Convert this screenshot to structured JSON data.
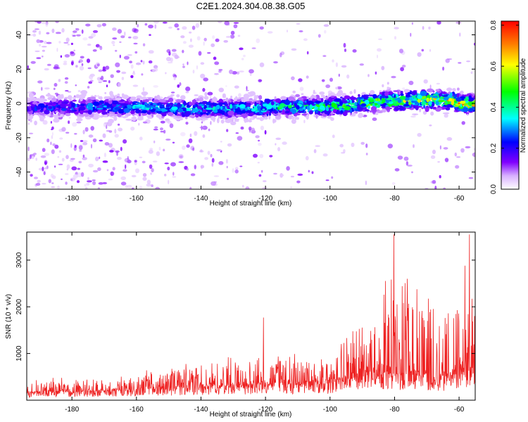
{
  "chart_data": [
    {
      "type": "heatmap",
      "title": "C2E1.2024.304.08.38.G05",
      "xlabel": "Height of straight line (km)",
      "ylabel": "Frequency (Hz)",
      "xlim": [
        -194,
        -55
      ],
      "ylim": [
        -50,
        48
      ],
      "x_ticks": [
        -180,
        -160,
        -140,
        -120,
        -100,
        -80,
        -60
      ],
      "x_tick_labels": [
        "-180",
        "-160",
        "-140",
        "-120",
        "-100",
        "-80",
        "-60"
      ],
      "y_ticks": [
        -40,
        -20,
        0,
        20,
        40
      ],
      "y_tick_labels": [
        "-40",
        "-20",
        "0",
        "20",
        "40"
      ],
      "colorbar": {
        "label": "Normalized spectral amplitude",
        "range": [
          0.0,
          0.82
        ],
        "ticks": [
          0.0,
          0.2,
          0.4,
          0.6,
          0.8
        ],
        "tick_labels": [
          "0.0",
          "0.2",
          "0.4",
          "0.6",
          "0.8"
        ],
        "colors": [
          "#ffffff",
          "#8000ff",
          "#0000ff",
          "#00ffff",
          "#00ff00",
          "#ffff00",
          "#ff8000",
          "#ff0000"
        ]
      },
      "ridge": [
        {
          "x": -194,
          "freq": -3,
          "amp": 0.22
        },
        {
          "x": -185,
          "freq": -2,
          "amp": 0.25
        },
        {
          "x": -175,
          "freq": -2,
          "amp": 0.28
        },
        {
          "x": -165,
          "freq": -2,
          "amp": 0.3
        },
        {
          "x": -155,
          "freq": -2,
          "amp": 0.34
        },
        {
          "x": -145,
          "freq": -3,
          "amp": 0.36
        },
        {
          "x": -135,
          "freq": -3,
          "amp": 0.34
        },
        {
          "x": -125,
          "freq": -3,
          "amp": 0.36
        },
        {
          "x": -115,
          "freq": -2,
          "amp": 0.42
        },
        {
          "x": -105,
          "freq": -2,
          "amp": 0.44
        },
        {
          "x": -95,
          "freq": -1,
          "amp": 0.48
        },
        {
          "x": -85,
          "freq": 1,
          "amp": 0.52
        },
        {
          "x": -75,
          "freq": 2,
          "amp": 0.58
        },
        {
          "x": -65,
          "freq": 2,
          "amp": 0.62
        },
        {
          "x": -55,
          "freq": -1,
          "amp": 0.68
        }
      ]
    },
    {
      "type": "line",
      "title": "",
      "xlabel": "Height of straight line (km)",
      "ylabel": "SNR (10 * v/v)",
      "xlim": [
        -194,
        -55
      ],
      "ylim": [
        0,
        3600
      ],
      "x_ticks": [
        -180,
        -160,
        -140,
        -120,
        -100,
        -80,
        -60
      ],
      "x_tick_labels": [
        "-180",
        "-160",
        "-140",
        "-120",
        "-100",
        "-80",
        "-60"
      ],
      "y_ticks": [
        1000,
        2000,
        3000
      ],
      "y_tick_labels": [
        "1000",
        "2000",
        "3000"
      ],
      "color": "#ee2222",
      "envelope": [
        {
          "x": -194,
          "base": 150,
          "peak": 380
        },
        {
          "x": -180,
          "base": 170,
          "peak": 430
        },
        {
          "x": -170,
          "base": 190,
          "peak": 460
        },
        {
          "x": -160,
          "base": 210,
          "peak": 520
        },
        {
          "x": -150,
          "base": 240,
          "peak": 620
        },
        {
          "x": -140,
          "base": 260,
          "peak": 700
        },
        {
          "x": -130,
          "base": 290,
          "peak": 780
        },
        {
          "x": -120,
          "base": 330,
          "peak": 1000
        },
        {
          "x": -110,
          "base": 330,
          "peak": 850
        },
        {
          "x": -100,
          "base": 340,
          "peak": 800
        },
        {
          "x": -95,
          "base": 420,
          "peak": 1300
        },
        {
          "x": -90,
          "base": 550,
          "peak": 1700
        },
        {
          "x": -85,
          "base": 600,
          "peak": 2000
        },
        {
          "x": -80,
          "base": 560,
          "peak": 2300
        },
        {
          "x": -75,
          "base": 520,
          "peak": 2100
        },
        {
          "x": -70,
          "base": 480,
          "peak": 2000
        },
        {
          "x": -65,
          "base": 500,
          "peak": 1900
        },
        {
          "x": -60,
          "base": 520,
          "peak": 2000
        },
        {
          "x": -55,
          "base": 560,
          "peak": 2400
        }
      ],
      "spikes": [
        {
          "x": -120.6,
          "y": 1770
        },
        {
          "x": -80.2,
          "y": 3550
        },
        {
          "x": -56.8,
          "y": 3550
        },
        {
          "x": -58.2,
          "y": 2880
        },
        {
          "x": -76.0,
          "y": 2600
        },
        {
          "x": -83.3,
          "y": 2260
        }
      ]
    }
  ]
}
